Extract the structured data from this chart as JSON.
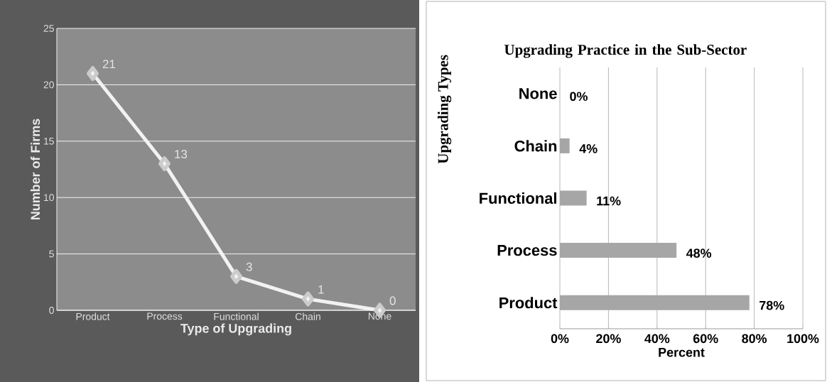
{
  "chart_data": [
    {
      "type": "line",
      "xlabel": "Type of Upgrading",
      "ylabel": "Number of Firms",
      "categories": [
        "Product",
        "Process",
        "Functional",
        "Chain",
        "None"
      ],
      "values": [
        21,
        13,
        3,
        1,
        0
      ],
      "color": "#f2f2f2",
      "ylim": [
        0,
        25
      ],
      "yticks": [
        0,
        5,
        10,
        15,
        20,
        25
      ],
      "grid": "y",
      "marker": "diamond",
      "data_labels": true
    },
    {
      "type": "bar",
      "orientation": "horizontal",
      "title": "Upgrading Practice in the Sub-Sector",
      "xlabel": "Percent",
      "ylabel": "Upgrading Types",
      "categories": [
        "None",
        "Chain",
        "Functional",
        "Process",
        "Product"
      ],
      "values": [
        0,
        4,
        11,
        48,
        78
      ],
      "value_labels": [
        "0%",
        "4%",
        "11%",
        "48%",
        "78%"
      ],
      "color": "#a6a6a6",
      "xlim": [
        0,
        100
      ],
      "xticks": [
        {
          "value": 0,
          "label": "0%"
        },
        {
          "value": 20,
          "label": "20%"
        },
        {
          "value": 40,
          "label": "40%"
        },
        {
          "value": 60,
          "label": "60%"
        },
        {
          "value": 80,
          "label": "80%"
        },
        {
          "value": 100,
          "label": "100%"
        }
      ],
      "grid": "x"
    }
  ]
}
